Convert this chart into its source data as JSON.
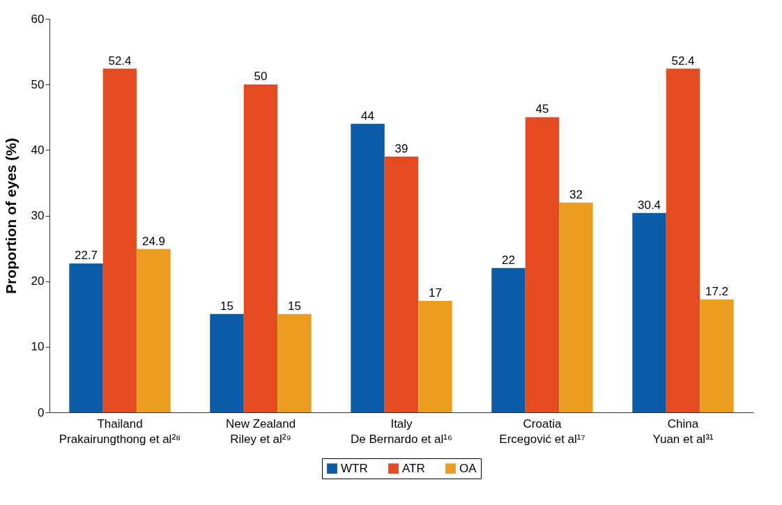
{
  "chart_data": {
    "type": "bar",
    "ylabel": "Proportion of eyes (%)",
    "categories": [
      "Thailand\nPrakairungthong et al²⁸",
      "New Zealand\nRiley et al²⁹",
      "Italy\nDe Bernardo et al¹⁶",
      "Croatia\nErcegović et al¹⁷",
      "China\nYuan et al³¹"
    ],
    "series": [
      {
        "name": "WTR",
        "color": "#0b5ca8",
        "values": [
          22.7,
          15,
          44,
          22,
          30.4
        ]
      },
      {
        "name": "ATR",
        "color": "#e54b21",
        "values": [
          52.4,
          50,
          39,
          45,
          52.4
        ]
      },
      {
        "name": "OA",
        "color": "#eb9d22",
        "values": [
          24.9,
          15,
          17,
          32,
          17.2
        ]
      }
    ],
    "ylim": [
      0,
      60
    ],
    "yticks": [
      0,
      10,
      20,
      30,
      40,
      50,
      60
    ],
    "data_labels": true,
    "legend": "bottom",
    "grid": false
  }
}
